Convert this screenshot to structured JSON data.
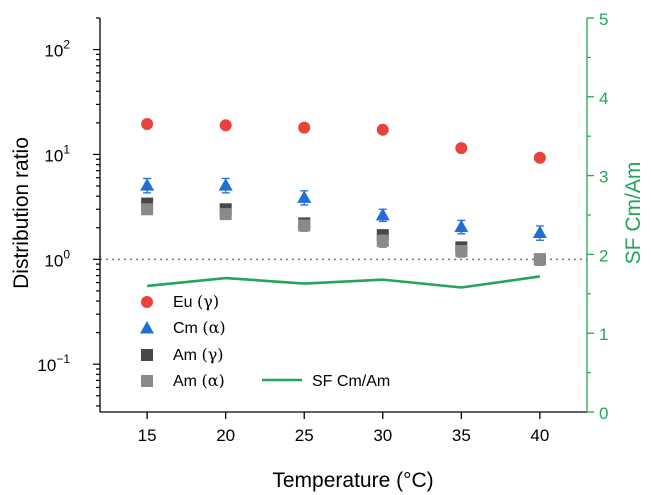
{
  "chart_data": {
    "type": "scatter",
    "title": "",
    "xlabel": "Temperature (°C)",
    "ylabel": "Distribution ratio",
    "y2label": "SF Cm/Am",
    "x": [
      15,
      20,
      25,
      30,
      35,
      40
    ],
    "xlim": [
      12,
      43
    ],
    "ylim": [
      0.035,
      200
    ],
    "yscale": "log",
    "y2lim": [
      0,
      5
    ],
    "xticks": [
      "15",
      "20",
      "25",
      "30",
      "35",
      "40"
    ],
    "yticks": [
      {
        "base": "10",
        "exp": "2",
        "value": 100
      },
      {
        "base": "10",
        "exp": "1",
        "value": 10
      },
      {
        "base": "10",
        "exp": "0",
        "value": 1
      },
      {
        "base": "10",
        "exp": "−1",
        "value": 0.1
      }
    ],
    "y2ticks": [
      "0",
      "1",
      "2",
      "3",
      "4",
      "5"
    ],
    "reference_line": {
      "y": 1,
      "style": "dotted"
    },
    "series": [
      {
        "name": "Eu",
        "mode": "(γ)",
        "marker": "circle",
        "color": "#e8413e",
        "values": [
          19.5,
          19.0,
          18.0,
          17.2,
          11.5,
          9.3
        ],
        "errors": [
          1.5,
          1.4,
          1.3,
          1.3,
          0.9,
          0.8
        ]
      },
      {
        "name": "Cm",
        "mode": "(α)",
        "marker": "triangle",
        "color": "#1f6fd6",
        "values": [
          5.1,
          5.1,
          3.9,
          2.65,
          2.05,
          1.8
        ],
        "errors": [
          0.8,
          0.8,
          0.6,
          0.35,
          0.3,
          0.28
        ]
      },
      {
        "name": "Am",
        "mode": "(γ)",
        "marker": "square",
        "color": "#484848",
        "values": [
          3.4,
          3.0,
          2.2,
          1.7,
          1.3,
          1.0
        ],
        "errors": [
          0.35,
          0.3,
          0.25,
          0.2,
          0.15,
          0.12
        ]
      },
      {
        "name": "Am",
        "mode": "(α)",
        "marker": "square",
        "color": "#8a8a8a",
        "values": [
          3.0,
          2.7,
          2.1,
          1.5,
          1.2,
          1.0
        ],
        "errors": [
          0.3,
          0.3,
          0.25,
          0.2,
          0.15,
          0.12
        ]
      },
      {
        "name": "SF Cm/Am",
        "mode": "",
        "marker": "line",
        "color": "#23a55a",
        "axis": "right",
        "values": [
          1.6,
          1.7,
          1.63,
          1.68,
          1.58,
          1.72
        ]
      }
    ],
    "legend_location": "lower-left"
  }
}
